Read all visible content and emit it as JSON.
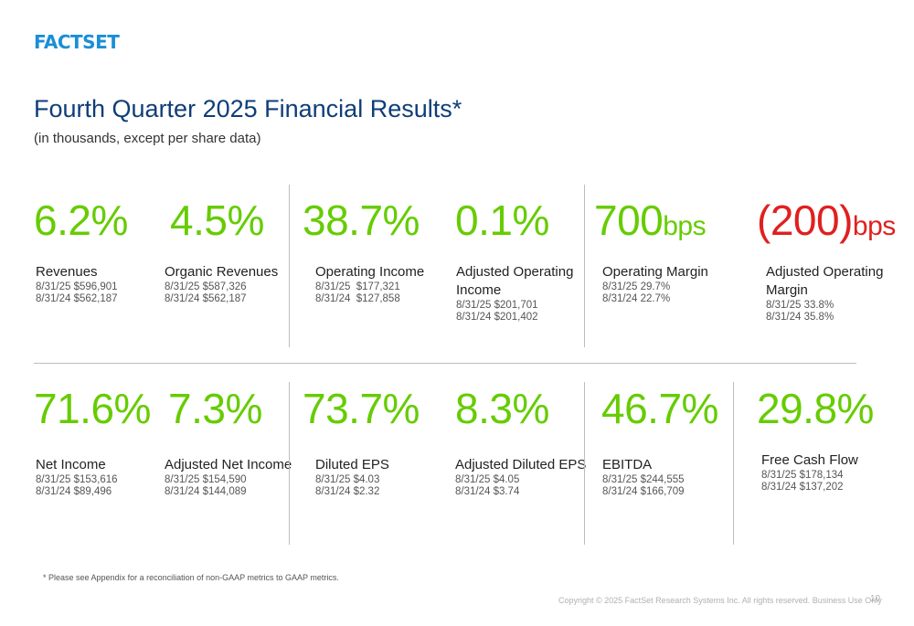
{
  "logo": "FACTSET",
  "title": "Fourth Quarter 2025 Financial Results*",
  "subtitle": "(in thousands, except per share data)",
  "colors": {
    "positive": "#66cc00",
    "negative": "#e02020",
    "title": "#0f3d78",
    "logo": "#1a8fd6"
  },
  "metrics": [
    {
      "value": "6.2%",
      "unit": "",
      "label": "Revenues",
      "lines": [
        "8/31/25 $596,901",
        "8/31/24 $562,187"
      ]
    },
    {
      "value": "4.5%",
      "unit": "",
      "label": "Organic Revenues",
      "lines": [
        "8/31/25 $587,326",
        "8/31/24 $562,187"
      ]
    },
    {
      "value": "38.7%",
      "unit": "",
      "label": "Operating Income",
      "lines": [
        "8/31/25  $177,321",
        "8/31/24  $127,858"
      ]
    },
    {
      "value": "0.1%",
      "unit": "",
      "label": "Adjusted Operating Income",
      "lines": [
        "8/31/25 $201,701",
        "8/31/24 $201,402"
      ]
    },
    {
      "value": "700",
      "unit": "bps",
      "label": "Operating Margin",
      "lines": [
        "8/31/25 29.7%",
        "8/31/24 22.7%"
      ]
    },
    {
      "value": "(200)",
      "unit": "bps",
      "label": "Adjusted Operating Margin",
      "lines": [
        "8/31/25 33.8%",
        "8/31/24 35.8%"
      ]
    },
    {
      "value": "71.6%",
      "unit": "",
      "label": "Net Income",
      "lines": [
        "8/31/25 $153,616",
        "8/31/24 $89,496"
      ]
    },
    {
      "value": "7.3%",
      "unit": "",
      "label": "Adjusted Net Income",
      "lines": [
        "8/31/25 $154,590",
        "8/31/24 $144,089"
      ]
    },
    {
      "value": "73.7%",
      "unit": "",
      "label": "Diluted EPS",
      "lines": [
        "8/31/25 $4.03",
        "8/31/24 $2.32"
      ]
    },
    {
      "value": "8.3%",
      "unit": "",
      "label": "Adjusted Diluted EPS",
      "lines": [
        "8/31/25 $4.05",
        "8/31/24 $3.74"
      ]
    },
    {
      "value": "46.7%",
      "unit": "",
      "label": "EBITDA",
      "lines": [
        "8/31/25 $244,555",
        "8/31/24 $166,709"
      ]
    },
    {
      "value": "29.8%",
      "unit": "",
      "label": "Free Cash Flow",
      "lines": [
        "8/31/25 $178,134",
        "8/31/24 $137,202"
      ]
    }
  ],
  "footnote": "* Please see Appendix for a reconciliation of non-GAAP metrics to GAAP metrics.",
  "copyright": "Copyright © 2025 FactSet Research Systems Inc. All rights reserved. Business Use Only",
  "page_number": "10"
}
